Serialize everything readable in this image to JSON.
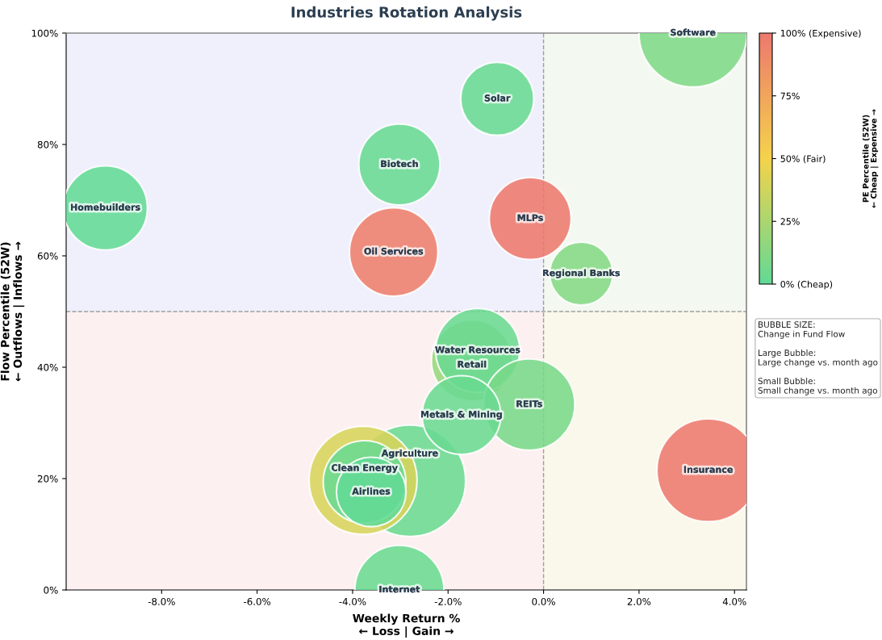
{
  "chart_data": {
    "type": "bubble",
    "title": "Industries Rotation Analysis",
    "xlabel": "Weekly Return %\n← Loss | Gain →",
    "ylabel": "Flow Percentile (52W)\n← Outflows | Inflows →",
    "clabel": "PE Percentile (52W)\n← Cheap | Expensive →",
    "x": [
      -2.8,
      -3.78,
      3.13,
      3.45,
      -3.02,
      -3.14,
      -9.18,
      -1.5,
      -1.38,
      -0.3,
      -1.72,
      -3.75,
      -0.28,
      -3.02,
      -0.97,
      -3.61,
      0.79
    ],
    "values": [
      19.6,
      19.7,
      100,
      21.5,
      0,
      60.7,
      68.6,
      41.2,
      43.0,
      33.3,
      31.4,
      19.4,
      66.7,
      76.4,
      88.2,
      17.6,
      56.8
    ],
    "sizes": [
      1.0,
      0.94,
      0.94,
      0.85,
      0.64,
      0.63,
      0.57,
      0.53,
      0.57,
      0.67,
      0.5,
      0.55,
      0.54,
      0.53,
      0.43,
      0.39,
      0.32
    ],
    "cvalues": [
      3,
      40,
      10,
      100,
      3,
      97,
      0,
      18,
      3,
      8,
      3,
      3,
      100,
      2,
      2,
      0,
      12
    ],
    "clim": [
      0,
      100
    ],
    "cticks": [
      {
        "value": 0,
        "label": "0% (Cheap)"
      },
      {
        "value": 25,
        "label": "25%"
      },
      {
        "value": 50,
        "label": "50% (Fair)"
      },
      {
        "value": 75,
        "label": "75%"
      },
      {
        "value": 100,
        "label": "100% (Expensive)"
      }
    ],
    "xlim": [
      -10,
      4.25
    ],
    "xticks": [
      {
        "value": -8,
        "label": "-8.0%"
      },
      {
        "value": -6,
        "label": "-6.0%"
      },
      {
        "value": -4,
        "label": "-4.0%"
      },
      {
        "value": -2,
        "label": "-2.0%"
      },
      {
        "value": 0,
        "label": "0.0%"
      },
      {
        "value": 2,
        "label": "2.0%"
      },
      {
        "value": 4,
        "label": "4.0%"
      }
    ],
    "ylim": [
      0,
      100
    ],
    "yticks": [
      {
        "value": 0,
        "label": "0%"
      },
      {
        "value": 20,
        "label": "20%"
      },
      {
        "value": 40,
        "label": "40%"
      },
      {
        "value": 60,
        "label": "60%"
      },
      {
        "value": 80,
        "label": "80%"
      },
      {
        "value": 100,
        "label": "100%"
      }
    ],
    "ref_lines": [
      {
        "axis": "x",
        "value": 0,
        "color": "#888888",
        "line_style": "dashed"
      },
      {
        "axis": "y",
        "value": 50,
        "color": "#888888",
        "line_style": "dashed"
      }
    ],
    "bands": [
      {
        "axis": "y",
        "from": 50,
        "to": 100,
        "color": "#e1e1f9"
      },
      {
        "axis": "y",
        "from": 0,
        "to": 50,
        "color": "#fbe1e1"
      },
      {
        "axis": "x",
        "from": 0,
        "to": 4.25,
        "color": "#f5ffe4"
      }
    ],
    "annotations": [
      {
        "text": "Software",
        "x": 3.13,
        "y": 100
      },
      {
        "text": "Solar",
        "x": -0.97,
        "y": 88.2
      },
      {
        "text": "Biotech",
        "x": -3.02,
        "y": 76.4
      },
      {
        "text": "Homebuilders",
        "x": -9.18,
        "y": 68.6
      },
      {
        "text": "MLPs",
        "x": -0.28,
        "y": 66.7
      },
      {
        "text": "Oil Services",
        "x": -3.14,
        "y": 60.7
      },
      {
        "text": "Regional Banks",
        "x": 0.79,
        "y": 56.8
      },
      {
        "text": "Water Resources",
        "x": -1.38,
        "y": 43.0
      },
      {
        "text": "Retail",
        "x": -1.5,
        "y": 41.2
      },
      {
        "text": "REITs",
        "x": -0.3,
        "y": 33.3
      },
      {
        "text": "Metals & Mining",
        "x": -1.72,
        "y": 31.4
      },
      {
        "text": "Clean Energy",
        "x": -3.75,
        "y": 19.4
      },
      {
        "text": "Airlines",
        "x": -3.61,
        "y": 17.6
      },
      {
        "text": "Agriculture",
        "x": -2.8,
        "y": 19.6
      },
      {
        "text": "Insurance",
        "x": 3.45,
        "y": 21.5
      },
      {
        "text": "Internet",
        "x": -3.02,
        "y": 0
      },
      "BUBBLE SIZE:\nChange in Fund Flow\n\nLarge Bubble:\nLarge change vs. month ago\n\nSmall Bubble:\nSmall change vs. month ago"
    ]
  }
}
